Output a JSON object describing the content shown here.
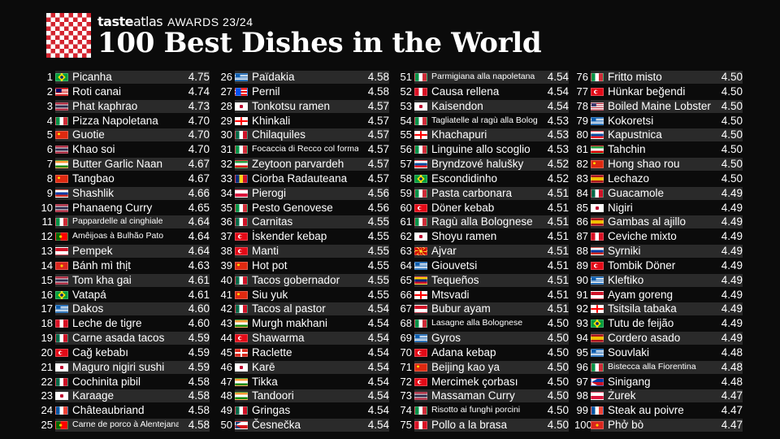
{
  "header": {
    "brand_taste": "taste",
    "brand_atlas": "atlas",
    "awards": "AWARDS 23/24",
    "title": "100 Best Dishes in the World"
  },
  "dishes": [
    {
      "rank": "1",
      "name": "Picanha",
      "score": "4.75",
      "flag": "br"
    },
    {
      "rank": "2",
      "name": "Roti canai",
      "score": "4.74",
      "flag": "my"
    },
    {
      "rank": "3",
      "name": "Phat kaphrao",
      "score": "4.73",
      "flag": "th"
    },
    {
      "rank": "4",
      "name": "Pizza Napoletana",
      "score": "4.70",
      "flag": "it"
    },
    {
      "rank": "5",
      "name": "Guotie",
      "score": "4.70",
      "flag": "cn"
    },
    {
      "rank": "6",
      "name": "Khao soi",
      "score": "4.70",
      "flag": "th"
    },
    {
      "rank": "7",
      "name": "Butter Garlic Naan",
      "score": "4.67",
      "flag": "in"
    },
    {
      "rank": "8",
      "name": "Tangbao",
      "score": "4.67",
      "flag": "cn"
    },
    {
      "rank": "9",
      "name": "Shashlik",
      "score": "4.66",
      "flag": "ru"
    },
    {
      "rank": "10",
      "name": "Phanaeng Curry",
      "score": "4.65",
      "flag": "th"
    },
    {
      "rank": "11",
      "name": "Pappardelle al cinghiale",
      "score": "4.64",
      "flag": "it",
      "small": true
    },
    {
      "rank": "12",
      "name": "Amêijoas à Bulhão Pato",
      "score": "4.64",
      "flag": "pt",
      "small": true
    },
    {
      "rank": "13",
      "name": "Pempek",
      "score": "4.64",
      "flag": "id"
    },
    {
      "rank": "14",
      "name": "Bánh mì thịt",
      "score": "4.63",
      "flag": "vn"
    },
    {
      "rank": "15",
      "name": "Tom kha gai",
      "score": "4.61",
      "flag": "th"
    },
    {
      "rank": "16",
      "name": "Vatapá",
      "score": "4.61",
      "flag": "br"
    },
    {
      "rank": "17",
      "name": "Dakos",
      "score": "4.60",
      "flag": "gr"
    },
    {
      "rank": "18",
      "name": "Leche de tigre",
      "score": "4.60",
      "flag": "pe"
    },
    {
      "rank": "19",
      "name": "Carne asada tacos",
      "score": "4.59",
      "flag": "mx"
    },
    {
      "rank": "20",
      "name": "Cağ kebabı",
      "score": "4.59",
      "flag": "tr"
    },
    {
      "rank": "21",
      "name": "Maguro nigiri sushi",
      "score": "4.59",
      "flag": "jp"
    },
    {
      "rank": "22",
      "name": "Cochinita pibil",
      "score": "4.58",
      "flag": "mx"
    },
    {
      "rank": "23",
      "name": "Karaage",
      "score": "4.58",
      "flag": "jp"
    },
    {
      "rank": "24",
      "name": "Châteaubriand",
      "score": "4.58",
      "flag": "fr"
    },
    {
      "rank": "25",
      "name": "Carne de porco à Alentejana",
      "score": "4.58",
      "flag": "pt",
      "small": true
    },
    {
      "rank": "26",
      "name": "Païdakia",
      "score": "4.58",
      "flag": "gr"
    },
    {
      "rank": "27",
      "name": "Pernil",
      "score": "4.58",
      "flag": "pr"
    },
    {
      "rank": "28",
      "name": "Tonkotsu ramen",
      "score": "4.57",
      "flag": "jp"
    },
    {
      "rank": "29",
      "name": "Khinkali",
      "score": "4.57",
      "flag": "ge"
    },
    {
      "rank": "30",
      "name": "Chilaquiles",
      "score": "4.57",
      "flag": "mx"
    },
    {
      "rank": "31",
      "name": "Focaccia di Recco col formaggio",
      "score": "4.57",
      "flag": "it",
      "small": true
    },
    {
      "rank": "32",
      "name": "Zeytoon parvardeh",
      "score": "4.57",
      "flag": "ir"
    },
    {
      "rank": "33",
      "name": "Ciorba Radauteana",
      "score": "4.57",
      "flag": "ro"
    },
    {
      "rank": "34",
      "name": "Pierogi",
      "score": "4.56",
      "flag": "pl"
    },
    {
      "rank": "35",
      "name": "Pesto Genovese",
      "score": "4.56",
      "flag": "it"
    },
    {
      "rank": "36",
      "name": "Carnitas",
      "score": "4.55",
      "flag": "mx"
    },
    {
      "rank": "37",
      "name": "İskender kebap",
      "score": "4.55",
      "flag": "tr"
    },
    {
      "rank": "38",
      "name": "Manti",
      "score": "4.55",
      "flag": "tr"
    },
    {
      "rank": "39",
      "name": "Hot pot",
      "score": "4.55",
      "flag": "cn"
    },
    {
      "rank": "40",
      "name": "Tacos gobernador",
      "score": "4.55",
      "flag": "mx"
    },
    {
      "rank": "41",
      "name": "Siu yuk",
      "score": "4.55",
      "flag": "cn"
    },
    {
      "rank": "42",
      "name": "Tacos al pastor",
      "score": "4.54",
      "flag": "mx"
    },
    {
      "rank": "43",
      "name": "Murgh makhani",
      "score": "4.54",
      "flag": "in"
    },
    {
      "rank": "44",
      "name": "Shawarma",
      "score": "4.54",
      "flag": "tr"
    },
    {
      "rank": "45",
      "name": "Raclette",
      "score": "4.54",
      "flag": "ch"
    },
    {
      "rank": "46",
      "name": "Karē",
      "score": "4.54",
      "flag": "jp"
    },
    {
      "rank": "47",
      "name": "Tikka",
      "score": "4.54",
      "flag": "in"
    },
    {
      "rank": "48",
      "name": "Tandoori",
      "score": "4.54",
      "flag": "in"
    },
    {
      "rank": "49",
      "name": "Gringas",
      "score": "4.54",
      "flag": "mx"
    },
    {
      "rank": "50",
      "name": "Česnečka",
      "score": "4.54",
      "flag": "cz"
    },
    {
      "rank": "51",
      "name": "Parmigiana alla napoletana",
      "score": "4.54",
      "flag": "it",
      "small": true
    },
    {
      "rank": "52",
      "name": "Causa rellena",
      "score": "4.54",
      "flag": "pe"
    },
    {
      "rank": "53",
      "name": "Kaisendon",
      "score": "4.54",
      "flag": "jp"
    },
    {
      "rank": "54",
      "name": "Tagliatelle al ragù alla Bolognese",
      "score": "4.53",
      "flag": "it",
      "small": true
    },
    {
      "rank": "55",
      "name": "Khachapuri",
      "score": "4.53",
      "flag": "ge"
    },
    {
      "rank": "56",
      "name": "Linguine allo scoglio",
      "score": "4.53",
      "flag": "it"
    },
    {
      "rank": "57",
      "name": "Bryndzové halušky",
      "score": "4.52",
      "flag": "sk"
    },
    {
      "rank": "58",
      "name": "Escondidinho",
      "score": "4.52",
      "flag": "br"
    },
    {
      "rank": "59",
      "name": "Pasta carbonara",
      "score": "4.51",
      "flag": "it"
    },
    {
      "rank": "60",
      "name": "Döner kebab",
      "score": "4.51",
      "flag": "tr"
    },
    {
      "rank": "61",
      "name": "Ragù alla Bolognese",
      "score": "4.51",
      "flag": "it"
    },
    {
      "rank": "62",
      "name": "Shoyu ramen",
      "score": "4.51",
      "flag": "jp"
    },
    {
      "rank": "63",
      "name": "Ajvar",
      "score": "4.51",
      "flag": "mk"
    },
    {
      "rank": "64",
      "name": "Giouvetsi",
      "score": "4.51",
      "flag": "gr"
    },
    {
      "rank": "65",
      "name": "Tequeños",
      "score": "4.51",
      "flag": "ve"
    },
    {
      "rank": "66",
      "name": "Mtsvadi",
      "score": "4.51",
      "flag": "ge"
    },
    {
      "rank": "67",
      "name": "Bubur ayam",
      "score": "4.51",
      "flag": "id"
    },
    {
      "rank": "68",
      "name": "Lasagne alla Bolognese",
      "score": "4.50",
      "flag": "it",
      "small": true
    },
    {
      "rank": "69",
      "name": "Gyros",
      "score": "4.50",
      "flag": "gr"
    },
    {
      "rank": "70",
      "name": "Adana kebap",
      "score": "4.50",
      "flag": "tr"
    },
    {
      "rank": "71",
      "name": "Beijing kao ya",
      "score": "4.50",
      "flag": "cn"
    },
    {
      "rank": "72",
      "name": "Mercimek çorbası",
      "score": "4.50",
      "flag": "tr"
    },
    {
      "rank": "73",
      "name": "Massaman Curry",
      "score": "4.50",
      "flag": "th"
    },
    {
      "rank": "74",
      "name": "Risotto ai funghi porcini",
      "score": "4.50",
      "flag": "it",
      "small": true
    },
    {
      "rank": "75",
      "name": "Pollo a la brasa",
      "score": "4.50",
      "flag": "pe"
    },
    {
      "rank": "76",
      "name": "Fritto misto",
      "score": "4.50",
      "flag": "it"
    },
    {
      "rank": "77",
      "name": "Hünkar beğendi",
      "score": "4.50",
      "flag": "tr"
    },
    {
      "rank": "78",
      "name": "Boiled Maine Lobster",
      "score": "4.50",
      "flag": "us"
    },
    {
      "rank": "79",
      "name": "Kokoretsi",
      "score": "4.50",
      "flag": "gr"
    },
    {
      "rank": "80",
      "name": "Kapustnica",
      "score": "4.50",
      "flag": "sk"
    },
    {
      "rank": "81",
      "name": "Tahchin",
      "score": "4.50",
      "flag": "ir"
    },
    {
      "rank": "82",
      "name": "Hong shao rou",
      "score": "4.50",
      "flag": "cn"
    },
    {
      "rank": "83",
      "name": "Lechazo",
      "score": "4.50",
      "flag": "es"
    },
    {
      "rank": "84",
      "name": "Guacamole",
      "score": "4.49",
      "flag": "mx"
    },
    {
      "rank": "85",
      "name": "Nigiri",
      "score": "4.49",
      "flag": "jp"
    },
    {
      "rank": "86",
      "name": "Gambas al ajillo",
      "score": "4.49",
      "flag": "es"
    },
    {
      "rank": "87",
      "name": "Ceviche mixto",
      "score": "4.49",
      "flag": "pe"
    },
    {
      "rank": "88",
      "name": "Syrniki",
      "score": "4.49",
      "flag": "ru"
    },
    {
      "rank": "89",
      "name": "Tombik Döner",
      "score": "4.49",
      "flag": "tr"
    },
    {
      "rank": "90",
      "name": "Kleftiko",
      "score": "4.49",
      "flag": "gr"
    },
    {
      "rank": "91",
      "name": "Ayam goreng",
      "score": "4.49",
      "flag": "id"
    },
    {
      "rank": "92",
      "name": "Tsitsila tabaka",
      "score": "4.49",
      "flag": "ge"
    },
    {
      "rank": "93",
      "name": "Tutu de feijão",
      "score": "4.49",
      "flag": "br"
    },
    {
      "rank": "94",
      "name": "Cordero asado",
      "score": "4.49",
      "flag": "es"
    },
    {
      "rank": "95",
      "name": "Souvlaki",
      "score": "4.48",
      "flag": "gr"
    },
    {
      "rank": "96",
      "name": "Bistecca alla Fiorentina",
      "score": "4.48",
      "flag": "it",
      "small": true
    },
    {
      "rank": "97",
      "name": "Sinigang",
      "score": "4.48",
      "flag": "ph"
    },
    {
      "rank": "98",
      "name": "Żurek",
      "score": "4.47",
      "flag": "pl"
    },
    {
      "rank": "99",
      "name": "Steak au poivre",
      "score": "4.47",
      "flag": "fr"
    },
    {
      "rank": "100",
      "name": "Phở bò",
      "score": "4.47",
      "flag": "vn"
    }
  ]
}
